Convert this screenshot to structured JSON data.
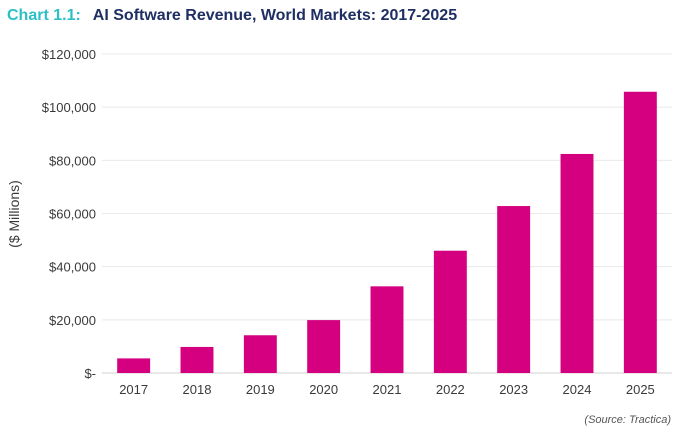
{
  "header": {
    "prefix": "Chart 1.1:",
    "title": "AI Software Revenue, World Markets: 2017-2025"
  },
  "source": "(Source: Tractica)",
  "colors": {
    "prefix": "#2bc0c4",
    "title": "#1f2f63",
    "bar": "#d4007f",
    "grid": "#e9e9e9"
  },
  "chart_data": {
    "type": "bar",
    "title": "AI Software Revenue, World Markets: 2017-2025",
    "xlabel": "",
    "ylabel": "($ Millions)",
    "categories": [
      "2017",
      "2018",
      "2019",
      "2020",
      "2021",
      "2022",
      "2023",
      "2024",
      "2025"
    ],
    "values": [
      5500,
      9800,
      14200,
      19900,
      32600,
      46000,
      62800,
      82400,
      105800
    ],
    "ylim": [
      0,
      120000
    ],
    "ytick_values": [
      0,
      20000,
      40000,
      60000,
      80000,
      100000,
      120000
    ],
    "ytick_labels": [
      "$-",
      "$20,000",
      "$40,000",
      "$60,000",
      "$80,000",
      "$100,000",
      "$120,000"
    ],
    "grid": true,
    "legend": "none"
  }
}
